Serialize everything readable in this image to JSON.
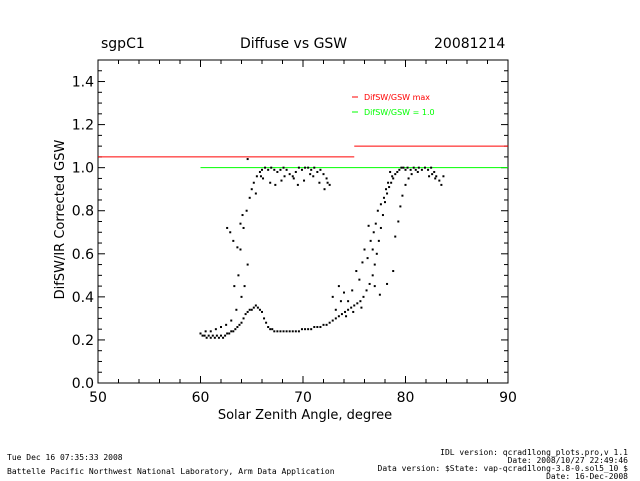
{
  "header": {
    "site": "sgpC1",
    "title": "Diffuse vs GSW",
    "date": "20081214"
  },
  "footer": {
    "run_time": "Tue Dec 16 07:35:33 2008",
    "org": "Battelle Pacific Northwest National Laboratory, Arm Data Application",
    "idl_version": "IDL version: qcrad1long_plots.pro,v 1.1",
    "idl_date": "Date: 2008/10/27 22:49:46",
    "data_version": "Data version: $State: vap-qcrad1long-3.8-0.sol5_10 $",
    "data_date": "Date: 16-Dec-2008"
  },
  "chart_data": {
    "type": "scatter",
    "title": "Diffuse vs GSW",
    "xlabel": "Solar Zenith Angle, degree",
    "ylabel": "DifSW/IR Corrected GSW",
    "xlim": [
      50,
      90
    ],
    "ylim": [
      0.0,
      1.5
    ],
    "x_ticks": [
      "50",
      "60",
      "70",
      "80",
      "90"
    ],
    "y_ticks": [
      "0.0",
      "0.2",
      "0.4",
      "0.6",
      "0.8",
      "1.0",
      "1.2",
      "1.4"
    ],
    "legend": [
      {
        "label": "DifSW/GSW max",
        "color": "#ff0000"
      },
      {
        "label": "DifSW/GSW = 1.0",
        "color": "#00ff00"
      }
    ],
    "legend_position": "top-right",
    "grid": false,
    "reference_lines": [
      {
        "name": "DifSW/GSW max",
        "color": "#ff0000",
        "segments": [
          [
            50,
            75,
            1.05
          ],
          [
            75,
            90,
            1.1
          ]
        ]
      },
      {
        "name": "DifSW/GSW = 1.0",
        "color": "#00ff00",
        "segments": [
          [
            60,
            90,
            1.0
          ]
        ]
      }
    ],
    "series": [
      {
        "color": "#000000",
        "points": [
          [
            60.0,
            0.23
          ],
          [
            60.2,
            0.22
          ],
          [
            60.4,
            0.22
          ],
          [
            60.6,
            0.21
          ],
          [
            60.8,
            0.22
          ],
          [
            61.0,
            0.21
          ],
          [
            61.2,
            0.22
          ],
          [
            61.4,
            0.21
          ],
          [
            61.6,
            0.22
          ],
          [
            61.8,
            0.21
          ],
          [
            62.0,
            0.22
          ],
          [
            62.2,
            0.21
          ],
          [
            62.4,
            0.22
          ],
          [
            62.6,
            0.23
          ],
          [
            62.8,
            0.23
          ],
          [
            63.0,
            0.24
          ],
          [
            63.2,
            0.24
          ],
          [
            63.4,
            0.25
          ],
          [
            63.6,
            0.26
          ],
          [
            63.8,
            0.27
          ],
          [
            64.0,
            0.28
          ],
          [
            64.2,
            0.3
          ],
          [
            64.4,
            0.32
          ],
          [
            64.6,
            0.33
          ],
          [
            64.8,
            0.34
          ],
          [
            65.0,
            0.34
          ],
          [
            65.2,
            0.35
          ],
          [
            65.4,
            0.36
          ],
          [
            65.6,
            0.35
          ],
          [
            65.8,
            0.34
          ],
          [
            66.0,
            0.33
          ],
          [
            66.2,
            0.3
          ],
          [
            66.4,
            0.28
          ],
          [
            66.6,
            0.26
          ],
          [
            66.8,
            0.25
          ],
          [
            67.0,
            0.25
          ],
          [
            67.2,
            0.24
          ],
          [
            67.5,
            0.24
          ],
          [
            67.8,
            0.24
          ],
          [
            68.1,
            0.24
          ],
          [
            68.4,
            0.24
          ],
          [
            68.7,
            0.24
          ],
          [
            69.0,
            0.24
          ],
          [
            69.3,
            0.24
          ],
          [
            69.6,
            0.24
          ],
          [
            69.9,
            0.25
          ],
          [
            70.2,
            0.25
          ],
          [
            70.5,
            0.25
          ],
          [
            70.8,
            0.25
          ],
          [
            71.1,
            0.26
          ],
          [
            71.4,
            0.26
          ],
          [
            71.7,
            0.26
          ],
          [
            72.0,
            0.27
          ],
          [
            72.3,
            0.27
          ],
          [
            72.6,
            0.28
          ],
          [
            72.9,
            0.29
          ],
          [
            73.2,
            0.3
          ],
          [
            73.5,
            0.31
          ],
          [
            73.8,
            0.32
          ],
          [
            74.1,
            0.33
          ],
          [
            74.4,
            0.34
          ],
          [
            74.7,
            0.35
          ],
          [
            75.0,
            0.36
          ],
          [
            75.3,
            0.37
          ],
          [
            75.6,
            0.38
          ],
          [
            75.9,
            0.4
          ],
          [
            76.2,
            0.43
          ],
          [
            76.5,
            0.46
          ],
          [
            76.8,
            0.5
          ],
          [
            77.0,
            0.55
          ],
          [
            77.2,
            0.6
          ],
          [
            77.4,
            0.66
          ],
          [
            77.6,
            0.72
          ],
          [
            77.8,
            0.78
          ],
          [
            78.0,
            0.84
          ],
          [
            78.2,
            0.88
          ],
          [
            78.4,
            0.91
          ],
          [
            78.6,
            0.93
          ],
          [
            78.8,
            0.95
          ],
          [
            79.0,
            0.97
          ],
          [
            79.2,
            0.98
          ],
          [
            79.4,
            0.99
          ],
          [
            79.6,
            1.0
          ],
          [
            79.8,
            1.0
          ],
          [
            80.0,
            0.99
          ],
          [
            80.2,
            1.0
          ],
          [
            80.5,
            0.99
          ],
          [
            80.8,
            1.0
          ],
          [
            60.5,
            0.24
          ],
          [
            61.0,
            0.24
          ],
          [
            61.5,
            0.25
          ],
          [
            62.0,
            0.26
          ],
          [
            62.5,
            0.27
          ],
          [
            63.0,
            0.29
          ],
          [
            63.5,
            0.34
          ],
          [
            64.0,
            0.4
          ],
          [
            64.3,
            0.45
          ],
          [
            64.6,
            0.55
          ],
          [
            63.3,
            0.45
          ],
          [
            63.7,
            0.5
          ],
          [
            63.9,
            0.62
          ],
          [
            64.2,
            0.72
          ],
          [
            64.5,
            0.8
          ],
          [
            64.8,
            0.86
          ],
          [
            65.0,
            0.9
          ],
          [
            65.2,
            0.93
          ],
          [
            65.5,
            0.96
          ],
          [
            65.8,
            0.98
          ],
          [
            66.0,
            0.99
          ],
          [
            66.3,
            1.0
          ],
          [
            66.6,
            0.99
          ],
          [
            66.9,
            1.0
          ],
          [
            67.2,
            0.99
          ],
          [
            67.5,
            0.98
          ],
          [
            67.8,
            0.99
          ],
          [
            68.1,
            1.0
          ],
          [
            68.4,
            0.99
          ],
          [
            68.7,
            0.97
          ],
          [
            69.0,
            0.96
          ],
          [
            69.3,
            0.98
          ],
          [
            69.6,
            1.0
          ],
          [
            69.9,
            0.99
          ],
          [
            70.2,
            1.0
          ],
          [
            70.5,
            1.0
          ],
          [
            70.8,
            0.99
          ],
          [
            71.1,
            1.0
          ],
          [
            71.4,
            0.98
          ],
          [
            71.7,
            0.99
          ],
          [
            72.0,
            0.97
          ],
          [
            72.3,
            0.95
          ],
          [
            72.6,
            0.92
          ],
          [
            65.4,
            0.88
          ],
          [
            66.1,
            0.95
          ],
          [
            66.8,
            0.93
          ],
          [
            67.3,
            0.92
          ],
          [
            68.2,
            0.96
          ],
          [
            69.1,
            0.95
          ],
          [
            70.1,
            0.94
          ],
          [
            71.0,
            0.96
          ],
          [
            71.6,
            0.93
          ],
          [
            72.1,
            0.9
          ],
          [
            64.6,
            1.04
          ],
          [
            65.9,
            0.96
          ],
          [
            67.9,
            0.94
          ],
          [
            69.5,
            0.92
          ],
          [
            70.7,
            0.97
          ],
          [
            72.4,
            0.93
          ],
          [
            62.6,
            0.72
          ],
          [
            62.9,
            0.7
          ],
          [
            63.2,
            0.66
          ],
          [
            63.6,
            0.63
          ],
          [
            63.9,
            0.74
          ],
          [
            64.1,
            0.78
          ],
          [
            73.2,
            0.34
          ],
          [
            73.7,
            0.38
          ],
          [
            74.0,
            0.42
          ],
          [
            74.4,
            0.38
          ],
          [
            74.8,
            0.43
          ],
          [
            75.2,
            0.52
          ],
          [
            75.5,
            0.48
          ],
          [
            75.8,
            0.56
          ],
          [
            76.0,
            0.62
          ],
          [
            76.3,
            0.58
          ],
          [
            76.6,
            0.66
          ],
          [
            76.9,
            0.7
          ],
          [
            77.1,
            0.74
          ],
          [
            77.3,
            0.8
          ],
          [
            77.6,
            0.83
          ],
          [
            77.9,
            0.86
          ],
          [
            78.1,
            0.9
          ],
          [
            78.3,
            0.93
          ],
          [
            78.7,
            0.96
          ],
          [
            78.5,
            0.98
          ],
          [
            76.4,
            0.73
          ],
          [
            76.8,
            0.62
          ],
          [
            77.0,
            0.45
          ],
          [
            77.5,
            0.41
          ],
          [
            78.2,
            0.46
          ],
          [
            78.8,
            0.52
          ],
          [
            79.0,
            0.68
          ],
          [
            79.3,
            0.75
          ],
          [
            79.5,
            0.82
          ],
          [
            79.7,
            0.87
          ],
          [
            80.0,
            0.92
          ],
          [
            80.3,
            0.95
          ],
          [
            80.6,
            0.97
          ],
          [
            81.0,
            0.99
          ],
          [
            81.3,
            1.0
          ],
          [
            81.6,
            0.99
          ],
          [
            81.9,
            1.0
          ],
          [
            82.2,
            0.99
          ],
          [
            82.5,
            1.0
          ],
          [
            82.8,
            0.98
          ],
          [
            83.0,
            0.96
          ],
          [
            83.3,
            0.94
          ],
          [
            83.5,
            0.92
          ],
          [
            83.7,
            0.96
          ],
          [
            82.6,
            0.97
          ],
          [
            82.3,
            0.96
          ],
          [
            81.2,
            0.98
          ],
          [
            82.9,
            0.95
          ],
          [
            72.9,
            0.4
          ],
          [
            73.5,
            0.45
          ],
          [
            74.2,
            0.31
          ],
          [
            74.9,
            0.33
          ],
          [
            75.7,
            0.35
          ]
        ]
      }
    ]
  }
}
